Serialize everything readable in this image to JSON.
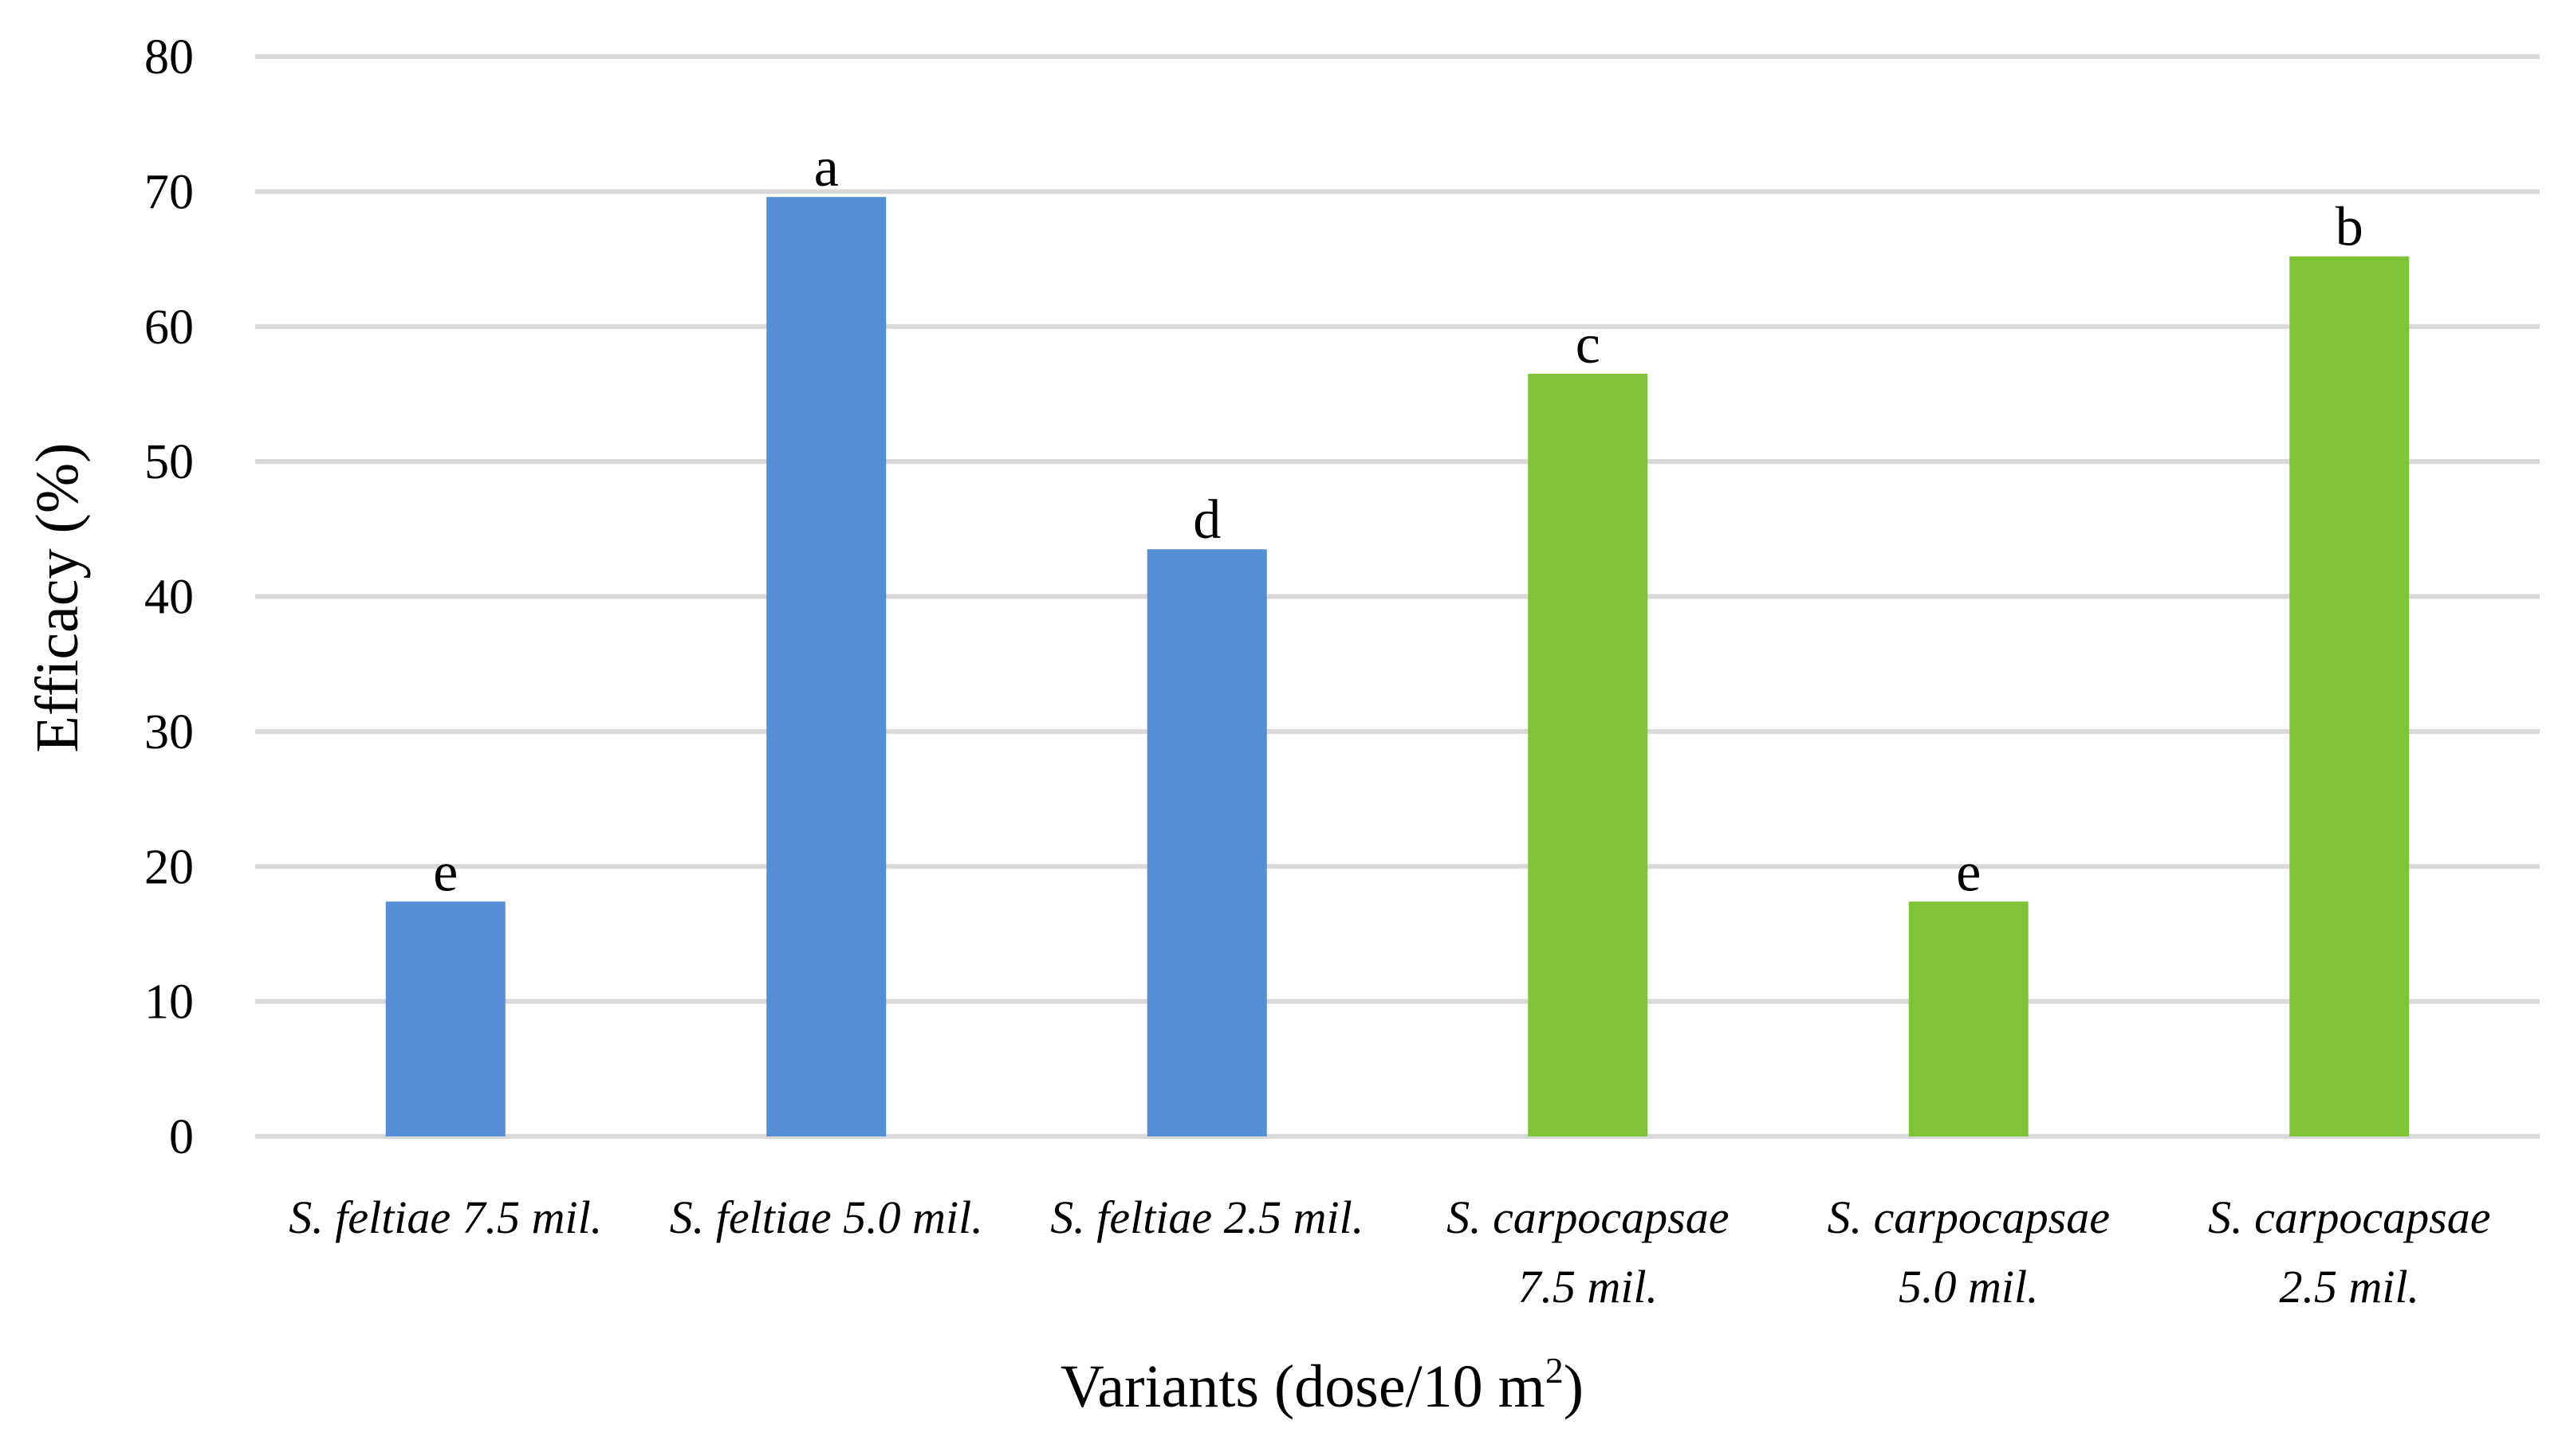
{
  "chart_data": {
    "type": "bar",
    "title": "",
    "xlabel": "Variants (dose/10 m",
    "xlabel_sup": "2",
    "xlabel_end": ")",
    "ylabel": "Efficacy (%)",
    "ylim": [
      0,
      80
    ],
    "yticks": [
      0,
      10,
      20,
      30,
      40,
      50,
      60,
      70,
      80
    ],
    "grid": true,
    "legend": "none",
    "categories": [
      [
        "S. feltiae 7.5 mil."
      ],
      [
        "S. feltiae 5.0 mil."
      ],
      [
        "S. feltiae 2.5 mil."
      ],
      [
        "S. carpocapsae",
        "7.5 mil."
      ],
      [
        "S. carpocapsae",
        "5.0 mil."
      ],
      [
        "S. carpocapsae",
        "2.5 mil."
      ]
    ],
    "values": [
      17.4,
      69.6,
      43.5,
      56.5,
      17.4,
      65.2
    ],
    "labels": [
      "e",
      "a",
      "d",
      "c",
      "e",
      "b"
    ],
    "colors": [
      "#558ed5",
      "#558ed5",
      "#558ed5",
      "#7fc337",
      "#7fc337",
      "#7fc337"
    ]
  }
}
